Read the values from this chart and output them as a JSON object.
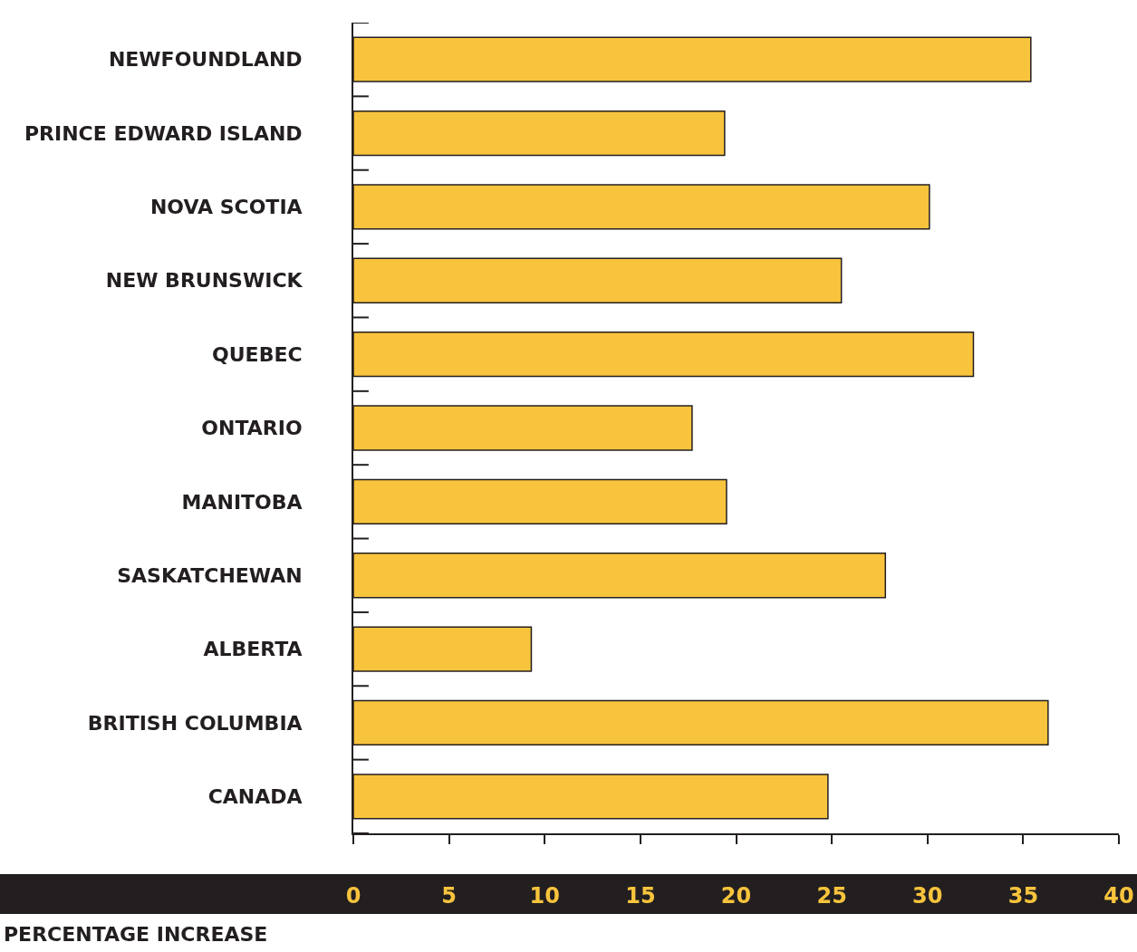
{
  "chart_data": {
    "type": "bar",
    "orientation": "horizontal",
    "xlabel": "PERCENTAGE INCREASE",
    "categories": [
      "NEWFOUNDLAND",
      "PRINCE EDWARD ISLAND",
      "NOVA SCOTIA",
      "NEW BRUNSWICK",
      "QUEBEC",
      "ONTARIO",
      "MANITOBA",
      "SASKATCHEWAN",
      "ALBERTA",
      "BRITISH COLUMBIA",
      "CANADA"
    ],
    "values": [
      35.4,
      19.4,
      30.1,
      25.5,
      32.4,
      17.7,
      19.5,
      27.8,
      9.3,
      36.3,
      24.8
    ],
    "color": "#f8c43d",
    "xlim": [
      0,
      40
    ],
    "xticks": [
      0,
      5,
      10,
      15,
      20,
      25,
      30,
      35,
      40
    ],
    "grid": false
  }
}
